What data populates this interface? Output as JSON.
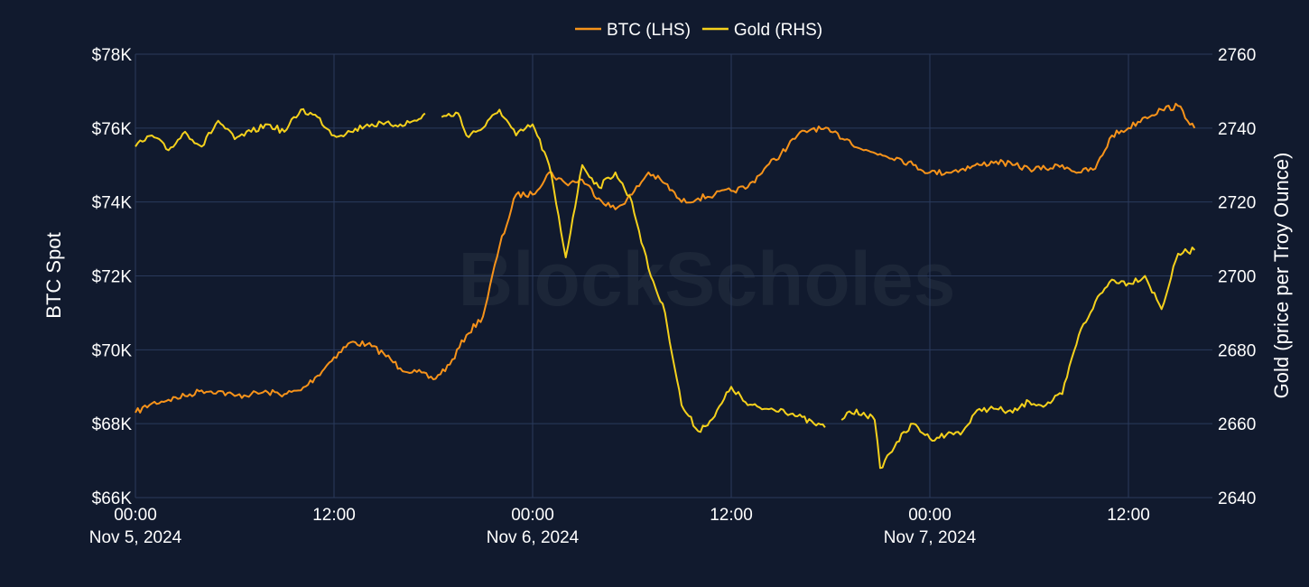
{
  "chart_data": {
    "type": "line",
    "watermark": "BlockScholes",
    "grid": true,
    "legend_position": "top-center",
    "x_axis": {
      "range": [
        "2024-11-05T00:00",
        "2024-11-07T16:00"
      ],
      "ticks": [
        {
          "value": "2024-11-05T00:00",
          "line1": "00:00",
          "line2": "Nov 5, 2024"
        },
        {
          "value": "2024-11-05T12:00",
          "line1": "12:00",
          "line2": ""
        },
        {
          "value": "2024-11-06T00:00",
          "line1": "00:00",
          "line2": "Nov 6, 2024"
        },
        {
          "value": "2024-11-06T12:00",
          "line1": "12:00",
          "line2": ""
        },
        {
          "value": "2024-11-07T00:00",
          "line1": "00:00",
          "line2": "Nov 7, 2024"
        },
        {
          "value": "2024-11-07T12:00",
          "line1": "12:00",
          "line2": ""
        }
      ]
    },
    "y_left": {
      "label": "BTC Spot",
      "range": [
        66000,
        78000
      ],
      "ticks": [
        {
          "value": 66000,
          "label": "$66K"
        },
        {
          "value": 68000,
          "label": "$68K"
        },
        {
          "value": 70000,
          "label": "$70K"
        },
        {
          "value": 72000,
          "label": "$72K"
        },
        {
          "value": 74000,
          "label": "$74K"
        },
        {
          "value": 76000,
          "label": "$76K"
        },
        {
          "value": 78000,
          "label": "$78K"
        }
      ]
    },
    "y_right": {
      "label": "Gold (price per Troy Ounce)",
      "range": [
        2640,
        2760
      ],
      "ticks": [
        {
          "value": 2640,
          "label": "2640"
        },
        {
          "value": 2660,
          "label": "2660"
        },
        {
          "value": 2680,
          "label": "2680"
        },
        {
          "value": 2700,
          "label": "2700"
        },
        {
          "value": 2720,
          "label": "2720"
        },
        {
          "value": 2740,
          "label": "2740"
        },
        {
          "value": 2760,
          "label": "2760"
        }
      ]
    },
    "series": [
      {
        "name": "BTC (LHS)",
        "axis": "left",
        "color": "#f7931a",
        "points": [
          [
            "2024-11-05T00:00",
            68300
          ],
          [
            "2024-11-05T01:00",
            68550
          ],
          [
            "2024-11-05T02:00",
            68650
          ],
          [
            "2024-11-05T03:00",
            68750
          ],
          [
            "2024-11-05T04:00",
            68900
          ],
          [
            "2024-11-05T05:00",
            68880
          ],
          [
            "2024-11-05T06:00",
            68750
          ],
          [
            "2024-11-05T07:00",
            68800
          ],
          [
            "2024-11-05T08:00",
            68850
          ],
          [
            "2024-11-05T09:00",
            68800
          ],
          [
            "2024-11-05T10:00",
            68900
          ],
          [
            "2024-11-05T11:00",
            69300
          ],
          [
            "2024-11-05T12:00",
            69800
          ],
          [
            "2024-11-05T13:00",
            70200
          ],
          [
            "2024-11-05T14:00",
            70150
          ],
          [
            "2024-11-05T15:00",
            69900
          ],
          [
            "2024-11-05T16:00",
            69500
          ],
          [
            "2024-11-05T17:00",
            69400
          ],
          [
            "2024-11-05T18:00",
            69200
          ],
          [
            "2024-11-05T19:00",
            69600
          ],
          [
            "2024-11-05T20:00",
            70400
          ],
          [
            "2024-11-05T21:00",
            70900
          ],
          [
            "2024-11-05T22:00",
            72800
          ],
          [
            "2024-11-05T23:00",
            74200
          ],
          [
            "2024-11-06T00:00",
            74200
          ],
          [
            "2024-11-06T01:00",
            74800
          ],
          [
            "2024-11-06T02:00",
            74500
          ],
          [
            "2024-11-06T03:00",
            74600
          ],
          [
            "2024-11-06T04:00",
            74100
          ],
          [
            "2024-11-06T05:00",
            73800
          ],
          [
            "2024-11-06T06:00",
            74200
          ],
          [
            "2024-11-06T07:00",
            74800
          ],
          [
            "2024-11-06T08:00",
            74500
          ],
          [
            "2024-11-06T09:00",
            74000
          ],
          [
            "2024-11-06T10:00",
            74100
          ],
          [
            "2024-11-06T11:00",
            74200
          ],
          [
            "2024-11-06T12:00",
            74300
          ],
          [
            "2024-11-06T13:00",
            74400
          ],
          [
            "2024-11-06T14:00",
            74900
          ],
          [
            "2024-11-06T15:00",
            75300
          ],
          [
            "2024-11-06T16:00",
            75800
          ],
          [
            "2024-11-06T17:00",
            76000
          ],
          [
            "2024-11-06T18:00",
            75900
          ],
          [
            "2024-11-06T19:00",
            75700
          ],
          [
            "2024-11-06T20:00",
            75400
          ],
          [
            "2024-11-06T21:00",
            75300
          ],
          [
            "2024-11-06T22:00",
            75200
          ],
          [
            "2024-11-06T23:00",
            75000
          ],
          [
            "2024-11-07T00:00",
            74800
          ],
          [
            "2024-11-07T01:00",
            74800
          ],
          [
            "2024-11-07T02:00",
            74900
          ],
          [
            "2024-11-07T03:00",
            75000
          ],
          [
            "2024-11-07T04:00",
            75100
          ],
          [
            "2024-11-07T05:00",
            75000
          ],
          [
            "2024-11-07T06:00",
            74900
          ],
          [
            "2024-11-07T07:00",
            74900
          ],
          [
            "2024-11-07T08:00",
            75000
          ],
          [
            "2024-11-07T09:00",
            74800
          ],
          [
            "2024-11-07T10:00",
            74900
          ],
          [
            "2024-11-07T11:00",
            75800
          ],
          [
            "2024-11-07T12:00",
            76000
          ],
          [
            "2024-11-07T13:00",
            76300
          ],
          [
            "2024-11-07T14:00",
            76500
          ],
          [
            "2024-11-07T15:00",
            76600
          ],
          [
            "2024-11-07T16:00",
            76000
          ]
        ]
      },
      {
        "name": "Gold (RHS)",
        "axis": "right",
        "color": "#f5d11c",
        "segments": [
          [
            [
              "2024-11-05T00:00",
              2735
            ],
            [
              "2024-11-05T01:00",
              2738
            ],
            [
              "2024-11-05T02:00",
              2734
            ],
            [
              "2024-11-05T03:00",
              2739
            ],
            [
              "2024-11-05T04:00",
              2735
            ],
            [
              "2024-11-05T05:00",
              2742
            ],
            [
              "2024-11-05T06:00",
              2737
            ],
            [
              "2024-11-05T07:00",
              2739
            ],
            [
              "2024-11-05T08:00",
              2741
            ],
            [
              "2024-11-05T09:00",
              2739
            ],
            [
              "2024-11-05T10:00",
              2745
            ],
            [
              "2024-11-05T11:00",
              2743
            ],
            [
              "2024-11-05T12:00",
              2738
            ],
            [
              "2024-11-05T13:00",
              2739
            ],
            [
              "2024-11-05T14:00",
              2741
            ],
            [
              "2024-11-05T15:00",
              2741
            ],
            [
              "2024-11-05T16:00",
              2741
            ],
            [
              "2024-11-05T17:00",
              2742
            ],
            [
              "2024-11-05T17:30",
              2744
            ]
          ],
          [
            [
              "2024-11-05T18:30",
              2743
            ],
            [
              "2024-11-05T19:30",
              2744
            ],
            [
              "2024-11-05T20:00",
              2738
            ],
            [
              "2024-11-05T21:00",
              2740
            ],
            [
              "2024-11-05T22:00",
              2745
            ],
            [
              "2024-11-05T23:00",
              2738
            ],
            [
              "2024-11-06T00:00",
              2741
            ],
            [
              "2024-11-06T01:00",
              2730
            ],
            [
              "2024-11-06T02:00",
              2705
            ],
            [
              "2024-11-06T03:00",
              2730
            ],
            [
              "2024-11-06T04:00",
              2724
            ],
            [
              "2024-11-06T05:00",
              2728
            ],
            [
              "2024-11-06T06:00",
              2720
            ],
            [
              "2024-11-06T07:00",
              2702
            ],
            [
              "2024-11-06T08:00",
              2690
            ],
            [
              "2024-11-06T09:00",
              2665
            ],
            [
              "2024-11-06T10:00",
              2658
            ],
            [
              "2024-11-06T11:00",
              2662
            ],
            [
              "2024-11-06T12:00",
              2670
            ],
            [
              "2024-11-06T13:00",
              2665
            ],
            [
              "2024-11-06T14:00",
              2664
            ],
            [
              "2024-11-06T15:00",
              2664
            ],
            [
              "2024-11-06T16:00",
              2662
            ],
            [
              "2024-11-06T17:00",
              2660
            ],
            [
              "2024-11-06T17:40",
              2659
            ]
          ],
          [
            [
              "2024-11-06T18:40",
              2661
            ],
            [
              "2024-11-06T19:00",
              2663
            ],
            [
              "2024-11-06T20:00",
              2663
            ],
            [
              "2024-11-06T20:40",
              2661
            ],
            [
              "2024-11-06T21:00",
              2648
            ],
            [
              "2024-11-06T22:00",
              2655
            ],
            [
              "2024-11-06T23:00",
              2660
            ],
            [
              "2024-11-07T00:00",
              2656
            ],
            [
              "2024-11-07T01:00",
              2657
            ],
            [
              "2024-11-07T02:00",
              2658
            ],
            [
              "2024-11-07T03:00",
              2664
            ],
            [
              "2024-11-07T04:00",
              2664
            ],
            [
              "2024-11-07T05:00",
              2663
            ],
            [
              "2024-11-07T06:00",
              2666
            ],
            [
              "2024-11-07T07:00",
              2665
            ],
            [
              "2024-11-07T08:00",
              2668
            ],
            [
              "2024-11-07T09:00",
              2684
            ],
            [
              "2024-11-07T10:00",
              2693
            ],
            [
              "2024-11-07T11:00",
              2699
            ],
            [
              "2024-11-07T12:00",
              2698
            ],
            [
              "2024-11-07T13:00",
              2700
            ],
            [
              "2024-11-07T14:00",
              2691
            ],
            [
              "2024-11-07T15:00",
              2706
            ],
            [
              "2024-11-07T16:00",
              2707
            ]
          ]
        ]
      }
    ]
  }
}
